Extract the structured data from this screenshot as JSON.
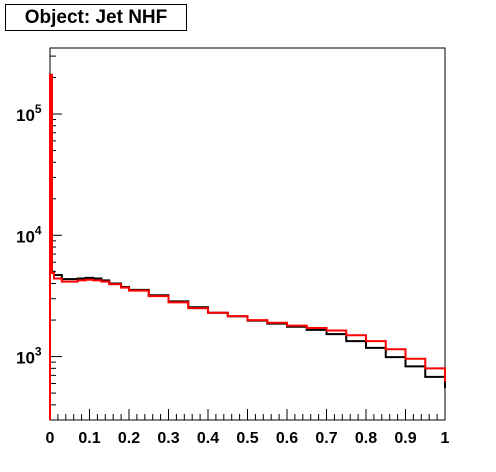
{
  "title": "Object: Jet NHF",
  "chart_data": {
    "type": "line",
    "title": "Object: Jet NHF",
    "xlabel": "",
    "ylabel": "",
    "xlim": [
      0,
      1
    ],
    "ylim": [
      300,
      350000
    ],
    "yscale": "log",
    "x_ticks": [
      "0",
      "0.1",
      "0.2",
      "0.3",
      "0.4",
      "0.5",
      "0.6",
      "0.7",
      "0.8",
      "0.9",
      "1"
    ],
    "y_ticks": [
      {
        "base": "10",
        "exp": "3",
        "value": 1000
      },
      {
        "base": "10",
        "exp": "4",
        "value": 10000
      },
      {
        "base": "10",
        "exp": "5",
        "value": 100000
      }
    ],
    "grid": false,
    "legend": "none",
    "series": [
      {
        "color": "#000000",
        "x": [
          0,
          0.005,
          0.01,
          0.03,
          0.05,
          0.07,
          0.09,
          0.11,
          0.13,
          0.15,
          0.18,
          0.2,
          0.25,
          0.3,
          0.35,
          0.4,
          0.45,
          0.5,
          0.55,
          0.6,
          0.65,
          0.7,
          0.75,
          0.8,
          0.85,
          0.9,
          0.95,
          1.0
        ],
        "values": [
          210000,
          5000,
          4700,
          4350,
          4350,
          4400,
          4450,
          4400,
          4250,
          4000,
          3750,
          3550,
          3200,
          2850,
          2550,
          2300,
          2150,
          1980,
          1870,
          1760,
          1660,
          1530,
          1340,
          1180,
          990,
          830,
          680,
          550
        ]
      },
      {
        "color": "#ff0000",
        "x": [
          0,
          0.005,
          0.01,
          0.03,
          0.05,
          0.07,
          0.09,
          0.11,
          0.13,
          0.15,
          0.18,
          0.2,
          0.25,
          0.3,
          0.35,
          0.4,
          0.45,
          0.5,
          0.55,
          0.6,
          0.65,
          0.7,
          0.75,
          0.8,
          0.85,
          0.9,
          0.95,
          1.0
        ],
        "values": [
          210000,
          4900,
          4400,
          4150,
          4150,
          4250,
          4300,
          4250,
          4150,
          3950,
          3700,
          3500,
          3150,
          2800,
          2500,
          2300,
          2150,
          2000,
          1900,
          1800,
          1720,
          1640,
          1500,
          1340,
          1150,
          960,
          800,
          620
        ]
      }
    ]
  }
}
